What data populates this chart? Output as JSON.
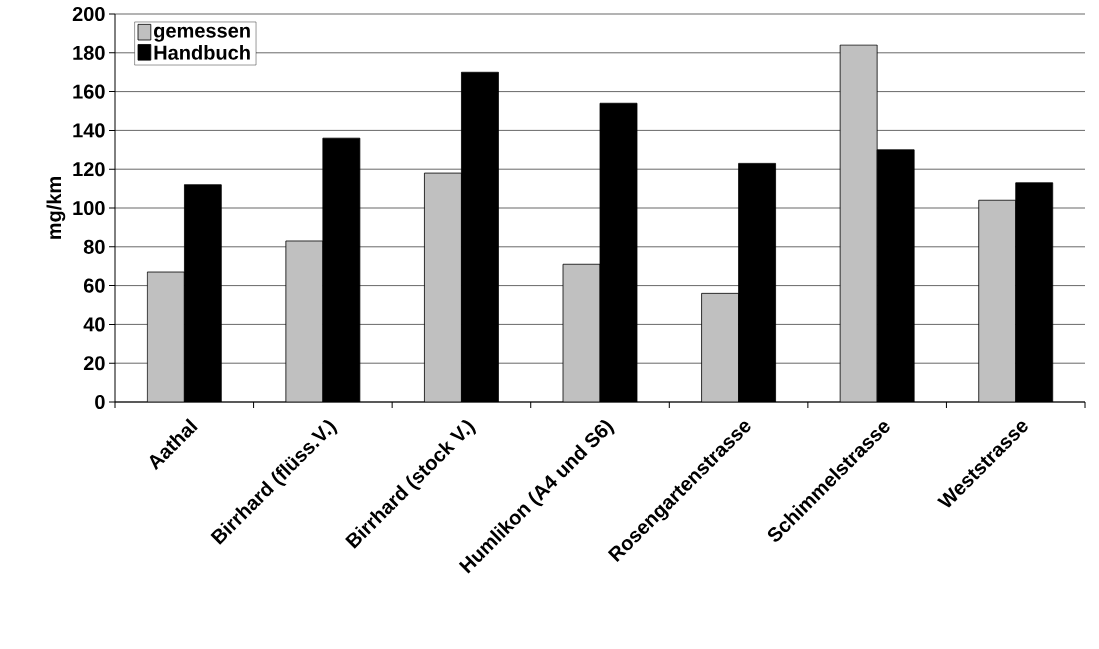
{
  "chart_data": {
    "type": "bar",
    "ylabel": "mg/km",
    "categories": [
      "Aathal",
      "Birrhard (flüss.V.)",
      "Birrhard (stock V.)",
      "Humlikon (A4 und S6)",
      "Rosengartenstrasse",
      "Schimmelstrasse",
      "Weststrasse"
    ],
    "series": [
      {
        "name": "gemessen",
        "color": "#c0c0c0",
        "values": [
          67,
          83,
          118,
          71,
          56,
          184,
          104
        ]
      },
      {
        "name": "Handbuch",
        "color": "#000000",
        "values": [
          112,
          136,
          170,
          154,
          123,
          130,
          113
        ]
      }
    ],
    "ylim": [
      0,
      200
    ],
    "yticks": [
      0,
      20,
      40,
      60,
      80,
      100,
      120,
      140,
      160,
      180,
      200
    ],
    "grid": "y",
    "legend": "top left"
  }
}
